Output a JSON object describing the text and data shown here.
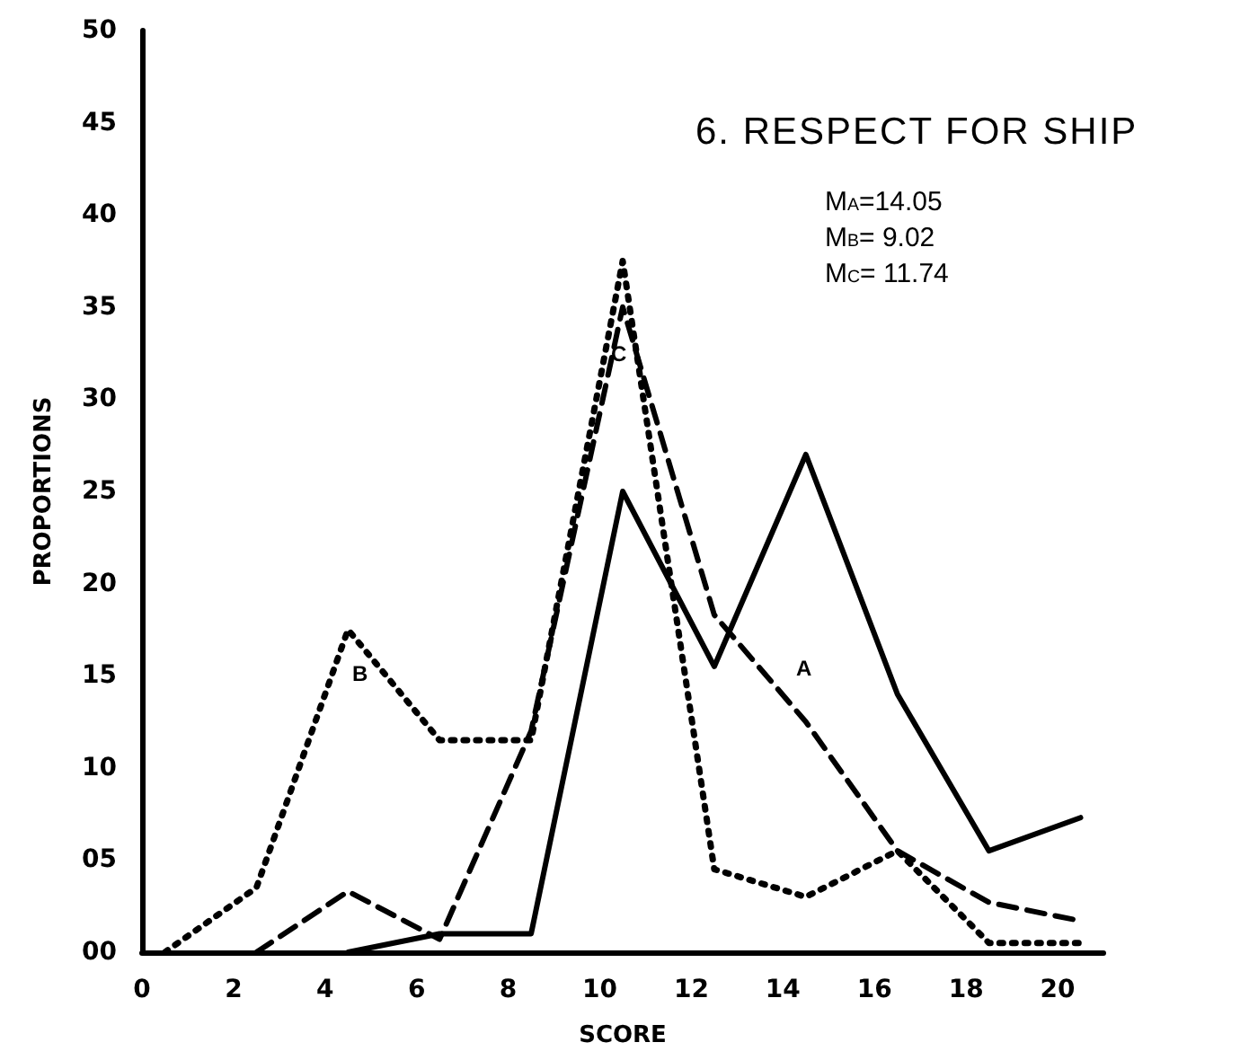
{
  "chart_data": {
    "type": "line",
    "title": "6. RESPECT FOR SHIP",
    "xlabel": "SCORE",
    "ylabel": "PROPORTIONS",
    "xlim": [
      0,
      21
    ],
    "xticks": [
      0,
      2,
      4,
      6,
      8,
      10,
      12,
      14,
      16,
      18,
      20
    ],
    "ylim": [
      0,
      50
    ],
    "yticks": [
      {
        "value": 0,
        "label": "00"
      },
      {
        "value": 5,
        "label": "05"
      },
      10,
      15,
      20,
      25,
      30,
      35,
      40,
      45,
      50
    ],
    "grid": false,
    "marker": "none",
    "series": [
      {
        "color": "#000000",
        "line_style": "solid",
        "x": [
          4.5,
          6.5,
          8.5,
          10.5,
          12.5,
          14.5,
          16.5,
          18.5,
          20.5
        ],
        "values": [
          0,
          1,
          1,
          25,
          15.5,
          27,
          14,
          5.5,
          7.3
        ]
      },
      {
        "color": "#000000",
        "line_style": "dotted",
        "x": [
          0.5,
          2.5,
          4.5,
          6.5,
          8.5,
          10.5,
          12.5,
          14.5,
          16.5,
          18.5,
          20.5
        ],
        "values": [
          0,
          3.5,
          17.5,
          11.5,
          11.5,
          37.5,
          4.5,
          3,
          5.5,
          0.5,
          0.5
        ]
      },
      {
        "color": "#000000",
        "line_style": "dashed",
        "x": [
          2.5,
          4.5,
          6.5,
          8.5,
          10.5,
          12.5,
          14.5,
          16.5,
          18.5,
          20.5
        ],
        "values": [
          0,
          3.3,
          0.7,
          12,
          35,
          18.3,
          12.5,
          5.5,
          2.7,
          1.7
        ]
      }
    ],
    "annotations": [
      "A",
      "B",
      {
        "text": "C",
        "x": 10.4,
        "y": 32.5
      },
      "M$_{A}$=14.05",
      "M$_{B}$= 9.02",
      "M$_{C}$= 11.74"
    ]
  }
}
